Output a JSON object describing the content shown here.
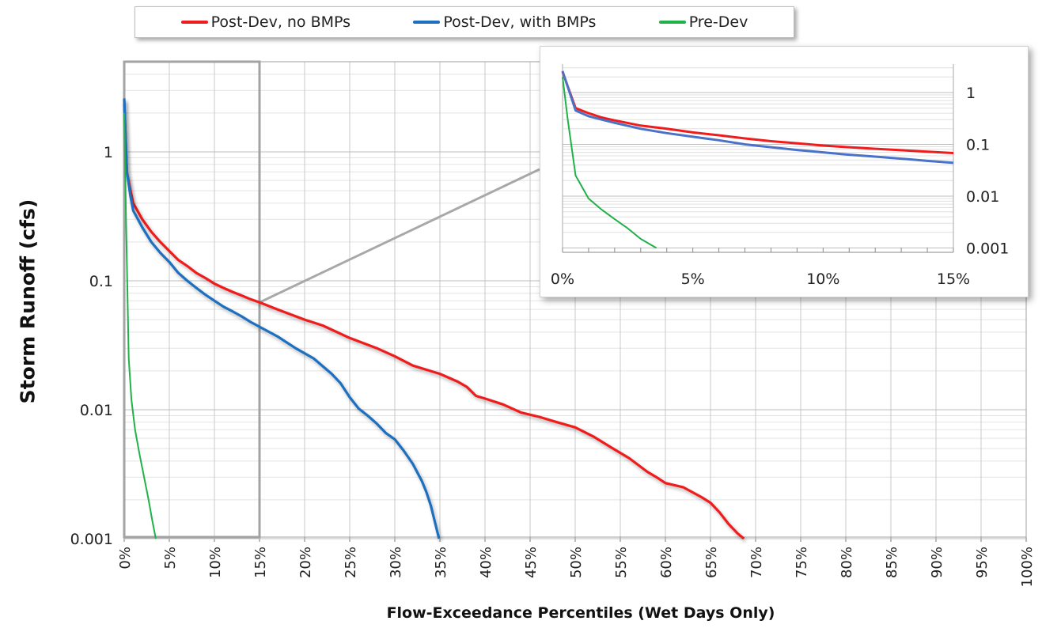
{
  "chart_data": [
    {
      "type": "line",
      "ylabel": "Storm Runoff (cfs)",
      "xlabel": "Flow-Exceedance Percentiles (Wet Days Only)",
      "yscale": "log",
      "ylim": [
        0.001,
        5
      ],
      "xlim": [
        0,
        100
      ],
      "x_ticks": [
        "0%",
        "5%",
        "10%",
        "15%",
        "20%",
        "25%",
        "30%",
        "35%",
        "40%",
        "45%",
        "50%",
        "55%",
        "60%",
        "65%",
        "70%",
        "75%",
        "80%",
        "85%",
        "90%",
        "95%",
        "100%"
      ],
      "y_ticks": [
        "0.001",
        "0.01",
        "0.1",
        "1"
      ],
      "grid": true,
      "legend_position": "top",
      "series": [
        {
          "name": "Post-Dev, no BMPs",
          "color": "#ee1c1c",
          "x": [
            0,
            0.3,
            0.7,
            1,
            2,
            3,
            4,
            5,
            6,
            7,
            8,
            9,
            10,
            11,
            12,
            13,
            14,
            15,
            17,
            20,
            22,
            25,
            28,
            30,
            32,
            35,
            37,
            38,
            39,
            40,
            42,
            44,
            46,
            48,
            50,
            52,
            54,
            56,
            58,
            59,
            60,
            62,
            64,
            65,
            66,
            67,
            68,
            68.7
          ],
          "y": [
            2.5,
            0.7,
            0.5,
            0.4,
            0.3,
            0.24,
            0.2,
            0.17,
            0.145,
            0.13,
            0.115,
            0.105,
            0.095,
            0.088,
            0.082,
            0.077,
            0.072,
            0.068,
            0.06,
            0.05,
            0.045,
            0.036,
            0.03,
            0.026,
            0.022,
            0.019,
            0.0165,
            0.015,
            0.0128,
            0.0122,
            0.011,
            0.0095,
            0.0088,
            0.008,
            0.0073,
            0.0062,
            0.0051,
            0.0042,
            0.0033,
            0.003,
            0.0027,
            0.0025,
            0.0021,
            0.0019,
            0.0016,
            0.0013,
            0.0011,
            0.001
          ]
        },
        {
          "name": "Post-Dev, with BMPs",
          "color": "#1f6fbf",
          "x": [
            0,
            0.3,
            0.7,
            1,
            2,
            3,
            4,
            5,
            6,
            7,
            8,
            9,
            10,
            11,
            12,
            13,
            14,
            15,
            17,
            19,
            21,
            23,
            24,
            25,
            26,
            27,
            28,
            29,
            30,
            31,
            32,
            33,
            33.5,
            34,
            34.5,
            34.9
          ],
          "y": [
            2.6,
            0.7,
            0.45,
            0.35,
            0.26,
            0.2,
            0.165,
            0.14,
            0.115,
            0.1,
            0.088,
            0.078,
            0.07,
            0.063,
            0.058,
            0.053,
            0.048,
            0.044,
            0.037,
            0.03,
            0.025,
            0.019,
            0.016,
            0.0125,
            0.0102,
            0.009,
            0.0078,
            0.0066,
            0.0059,
            0.0048,
            0.0038,
            0.0028,
            0.0023,
            0.0018,
            0.0013,
            0.001
          ]
        },
        {
          "name": "Pre-Dev",
          "color": "#22b04a",
          "x": [
            0,
            0.2,
            0.5,
            0.8,
            1.2,
            1.7,
            2.2,
            2.7,
            3.1,
            3.5
          ],
          "y": [
            2,
            0.3,
            0.025,
            0.012,
            0.007,
            0.0045,
            0.003,
            0.002,
            0.0014,
            0.001
          ]
        }
      ]
    },
    {
      "type": "line",
      "role": "inset-zoom",
      "yscale": "log",
      "xlim": [
        0,
        15
      ],
      "ylim": [
        0.001,
        5
      ],
      "x_ticks": [
        "0%",
        "5%",
        "10%",
        "15%"
      ],
      "y_ticks": [
        "0.001",
        "0.01",
        "0.1",
        "1"
      ],
      "series": [
        {
          "name": "Post-Dev, no BMPs",
          "color": "#ee1c1c",
          "x": [
            0,
            0.5,
            1,
            1.5,
            2,
            3,
            4,
            5,
            6,
            7,
            8,
            9,
            10,
            11,
            12,
            13,
            14,
            15
          ],
          "y": [
            2.5,
            0.5,
            0.4,
            0.33,
            0.29,
            0.23,
            0.2,
            0.17,
            0.15,
            0.13,
            0.115,
            0.105,
            0.095,
            0.088,
            0.082,
            0.077,
            0.072,
            0.068
          ]
        },
        {
          "name": "Post-Dev, with BMPs",
          "color": "#4a72c8",
          "x": [
            0,
            0.5,
            1,
            1.5,
            2,
            3,
            4,
            5,
            6,
            7,
            8,
            9,
            10,
            11,
            12,
            13,
            14,
            15
          ],
          "y": [
            2.6,
            0.45,
            0.35,
            0.3,
            0.26,
            0.2,
            0.165,
            0.14,
            0.12,
            0.1,
            0.088,
            0.078,
            0.07,
            0.063,
            0.058,
            0.053,
            0.048,
            0.044
          ]
        },
        {
          "name": "Pre-Dev",
          "color": "#22b04a",
          "x": [
            0,
            0.2,
            0.5,
            1,
            1.5,
            2,
            2.5,
            3,
            3.6
          ],
          "y": [
            2,
            0.3,
            0.025,
            0.009,
            0.0055,
            0.0036,
            0.0024,
            0.0015,
            0.001
          ]
        }
      ]
    }
  ],
  "legend": {
    "items": [
      {
        "label": "Post-Dev, no BMPs",
        "color": "#ee1c1c"
      },
      {
        "label": "Post-Dev, with BMPs",
        "color": "#1f6fbf"
      },
      {
        "label": "Pre-Dev",
        "color": "#22b04a"
      }
    ]
  }
}
